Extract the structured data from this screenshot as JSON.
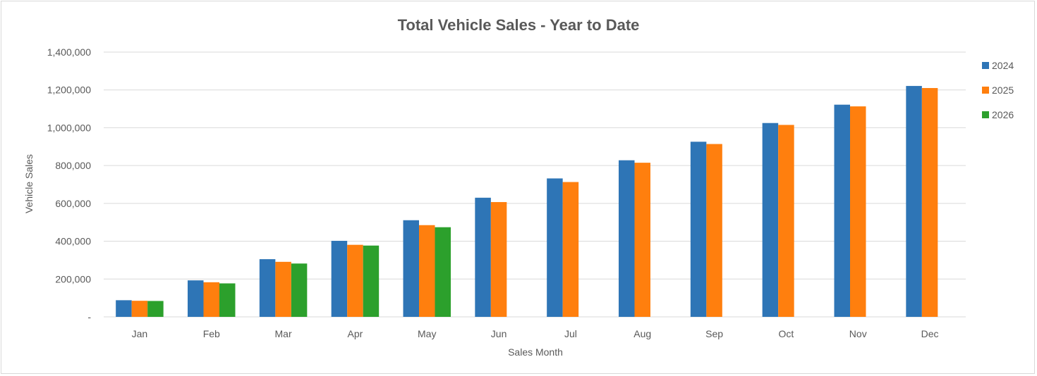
{
  "chart_data": {
    "type": "bar",
    "title": "Total Vehicle Sales - Year to Date",
    "xlabel": "Sales Month",
    "ylabel": "Vehicle Sales",
    "categories": [
      "Jan",
      "Feb",
      "Mar",
      "Apr",
      "May",
      "Jun",
      "Jul",
      "Aug",
      "Sep",
      "Oct",
      "Nov",
      "Dec"
    ],
    "series": [
      {
        "name": "2024",
        "color": "#2e75b6",
        "values": [
          88000,
          193000,
          305000,
          402000,
          511000,
          630000,
          732000,
          828000,
          926000,
          1025000,
          1122000,
          1221000
        ]
      },
      {
        "name": "2025",
        "color": "#ff7f0e",
        "values": [
          85000,
          183000,
          291000,
          381000,
          485000,
          607000,
          713000,
          815000,
          914000,
          1015000,
          1113000,
          1210000
        ]
      },
      {
        "name": "2026",
        "color": "#2ca02c",
        "values": [
          84000,
          177000,
          282000,
          377000,
          474000,
          null,
          null,
          null,
          null,
          null,
          null,
          null
        ]
      }
    ],
    "ylim": [
      0,
      1400000
    ],
    "yticks": [
      0,
      200000,
      400000,
      600000,
      800000,
      1000000,
      1200000,
      1400000
    ],
    "ytick_labels": [
      "-",
      "200,000",
      "400,000",
      "600,000",
      "800,000",
      "1,000,000",
      "1,200,000",
      "1,400,000"
    ],
    "grid": true,
    "legend_position": "right"
  }
}
